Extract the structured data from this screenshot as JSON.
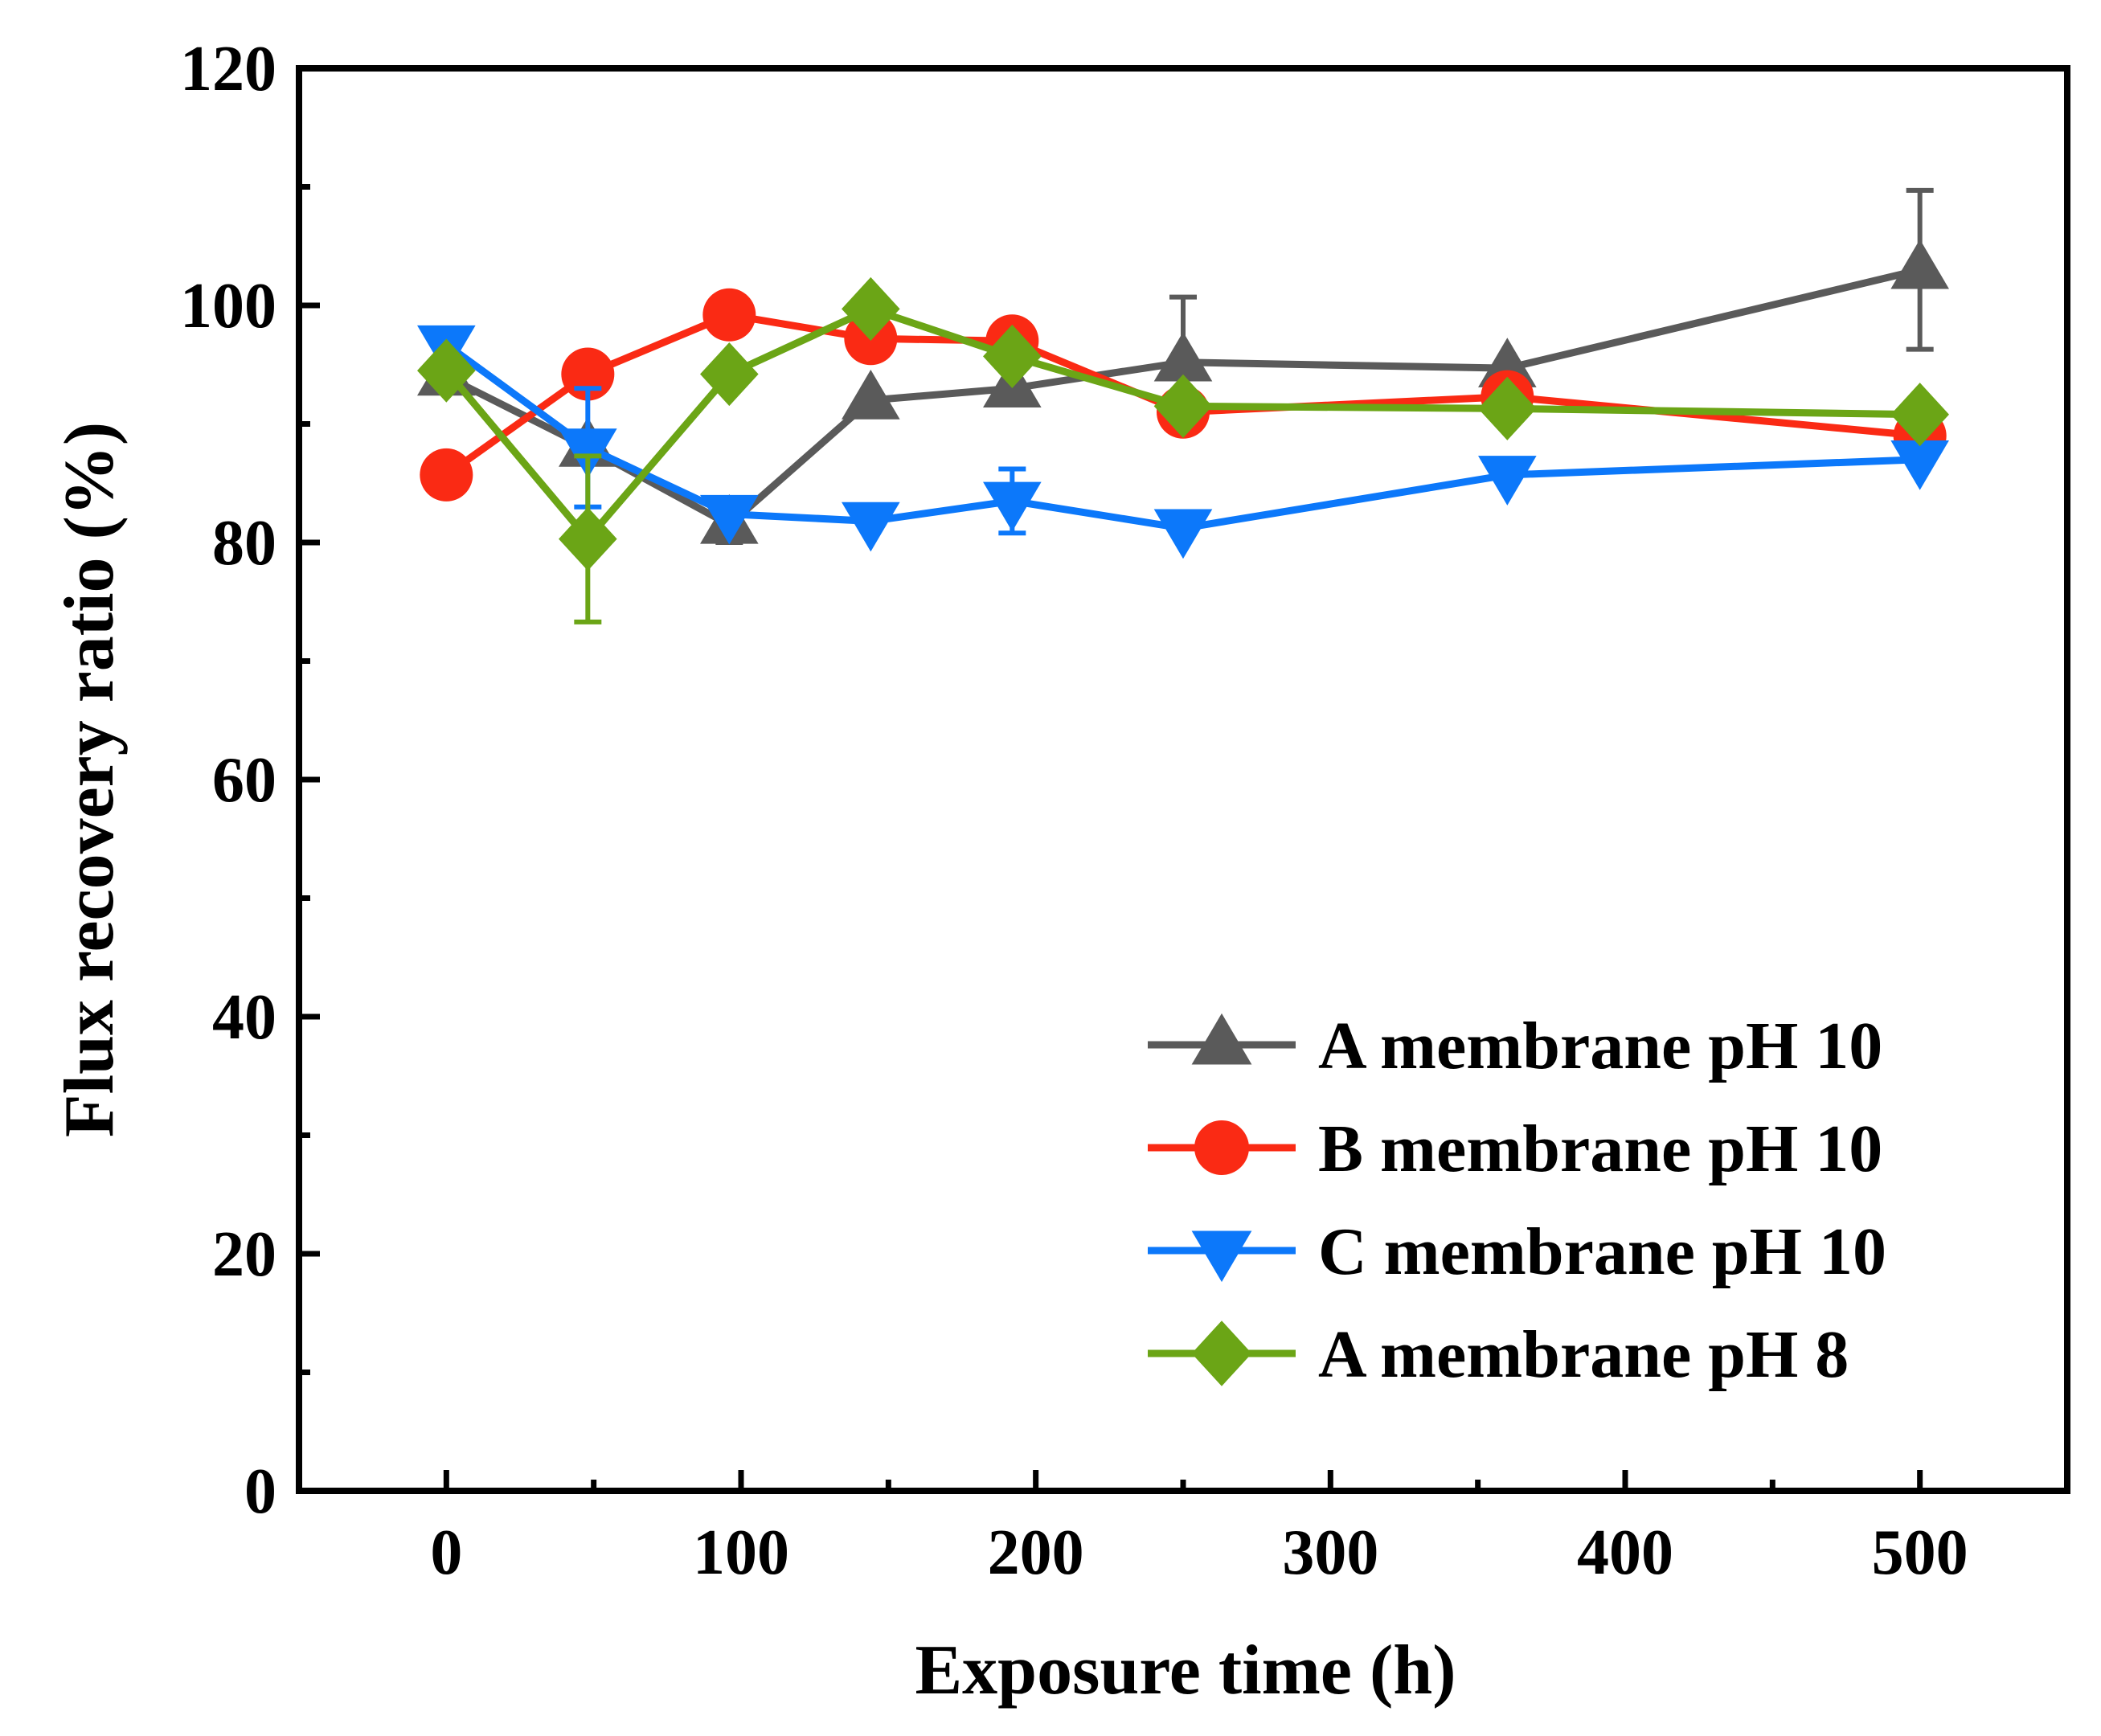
{
  "chart_data": {
    "type": "line",
    "title": "",
    "xlabel": "Exposure time (h)",
    "ylabel": "Flux recovery ratio (%)",
    "xlim": [
      -50,
      550
    ],
    "ylim": [
      0,
      120
    ],
    "xticks": [
      0,
      100,
      200,
      300,
      400,
      500
    ],
    "xtick_labels": [
      "0",
      "100",
      "200",
      "300",
      "400",
      "500"
    ],
    "yticks": [
      0,
      20,
      40,
      60,
      80,
      100,
      120
    ],
    "ytick_labels": [
      "0",
      "20",
      "40",
      "60",
      "80",
      "100",
      "120"
    ],
    "grid": false,
    "legend_position": "bottom-right",
    "series": [
      {
        "name": "A membrane pH 10",
        "color": "#5a5a5a",
        "marker": "triangle-up",
        "x": [
          0,
          48,
          96,
          144,
          192,
          250,
          360,
          500
        ],
        "y": [
          94.0,
          88.0,
          81.5,
          92.0,
          93.0,
          95.2,
          94.7,
          103.0
        ],
        "err": [
          0,
          0,
          1.5,
          0,
          0,
          5.5,
          0,
          6.7
        ]
      },
      {
        "name": "B membrane pH 10",
        "color": "#fa2a14",
        "marker": "circle",
        "x": [
          0,
          48,
          96,
          144,
          192,
          250,
          360,
          500
        ],
        "y": [
          85.7,
          94.2,
          99.2,
          97.2,
          97.0,
          91.0,
          92.3,
          89.0
        ],
        "err": [
          0,
          0,
          0,
          0,
          0,
          0,
          0,
          0
        ]
      },
      {
        "name": "C membrane pH 10",
        "color": "#0c78fa",
        "marker": "triangle-down",
        "x": [
          0,
          48,
          96,
          144,
          192,
          250,
          360,
          500
        ],
        "y": [
          96.7,
          88.0,
          82.4,
          81.8,
          83.5,
          81.2,
          85.7,
          87.0
        ],
        "err": [
          0,
          5.0,
          0,
          0,
          2.7,
          0,
          0,
          0
        ]
      },
      {
        "name": "A membrane pH 8",
        "color": "#6ba516",
        "marker": "diamond",
        "x": [
          0,
          48,
          96,
          144,
          192,
          250,
          360,
          500
        ],
        "y": [
          94.5,
          80.3,
          94.2,
          99.7,
          95.7,
          91.5,
          91.3,
          90.8
        ],
        "err": [
          0,
          7.0,
          0,
          0,
          0,
          0,
          0,
          0
        ]
      }
    ]
  }
}
